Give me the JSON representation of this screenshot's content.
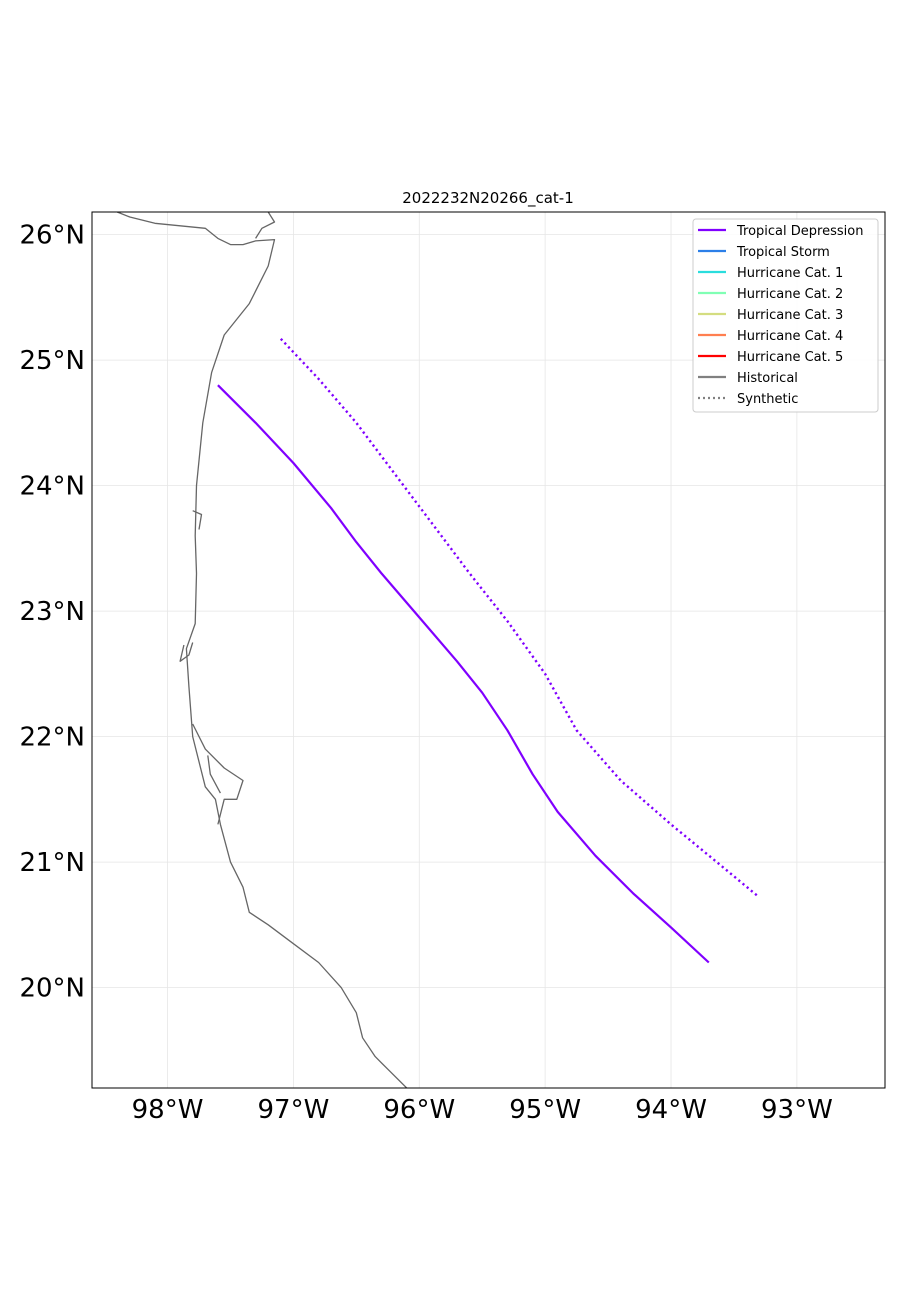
{
  "title": "2022232N20266_cat-1",
  "map": {
    "type": "map",
    "extent": {
      "lon": [
        -98.6,
        -92.3
      ],
      "lat": [
        19.2,
        26.18
      ]
    },
    "grid": true,
    "x_ticks": [
      {
        "value": -98,
        "label": "98°W"
      },
      {
        "value": -97,
        "label": "97°W"
      },
      {
        "value": -96,
        "label": "96°W"
      },
      {
        "value": -95,
        "label": "95°W"
      },
      {
        "value": -94,
        "label": "94°W"
      },
      {
        "value": -93,
        "label": "93°W"
      }
    ],
    "y_ticks": [
      {
        "value": 26,
        "label": "26°N"
      },
      {
        "value": 25,
        "label": "25°N"
      },
      {
        "value": 24,
        "label": "24°N"
      },
      {
        "value": 23,
        "label": "23°N"
      },
      {
        "value": 22,
        "label": "22°N"
      },
      {
        "value": 21,
        "label": "21°N"
      },
      {
        "value": 20,
        "label": "20°N"
      }
    ],
    "coastline_color": "#666666",
    "coastline": [
      [
        [
          -98.4,
          26.18
        ],
        [
          -98.3,
          26.14
        ],
        [
          -98.1,
          26.09
        ],
        [
          -97.9,
          26.07
        ],
        [
          -97.7,
          26.05
        ],
        [
          -97.6,
          25.97
        ],
        [
          -97.5,
          25.92
        ],
        [
          -97.4,
          25.92
        ],
        [
          -97.3,
          25.95
        ],
        [
          -97.15,
          25.96
        ],
        [
          -97.2,
          25.75
        ],
        [
          -97.35,
          25.45
        ],
        [
          -97.55,
          25.2
        ],
        [
          -97.65,
          24.9
        ],
        [
          -97.72,
          24.5
        ],
        [
          -97.77,
          24.0
        ],
        [
          -97.78,
          23.6
        ],
        [
          -97.77,
          23.3
        ],
        [
          -97.78,
          22.9
        ],
        [
          -97.85,
          22.7
        ],
        [
          -97.83,
          22.4
        ],
        [
          -97.8,
          22.0
        ],
        [
          -97.75,
          21.8
        ],
        [
          -97.7,
          21.6
        ],
        [
          -97.62,
          21.5
        ],
        [
          -97.58,
          21.3
        ],
        [
          -97.5,
          21.0
        ],
        [
          -97.4,
          20.8
        ],
        [
          -97.35,
          20.6
        ],
        [
          -97.2,
          20.5
        ],
        [
          -97.0,
          20.35
        ],
        [
          -96.8,
          20.2
        ],
        [
          -96.62,
          20.0
        ],
        [
          -96.5,
          19.8
        ],
        [
          -96.45,
          19.6
        ],
        [
          -96.35,
          19.45
        ],
        [
          -96.25,
          19.35
        ],
        [
          -96.1,
          19.2
        ]
      ],
      [
        [
          -97.2,
          26.18
        ],
        [
          -97.15,
          26.1
        ],
        [
          -97.25,
          26.05
        ],
        [
          -97.3,
          25.97
        ]
      ],
      [
        [
          -97.8,
          23.8
        ],
        [
          -97.73,
          23.77
        ],
        [
          -97.75,
          23.65
        ]
      ],
      [
        [
          -97.87,
          22.73
        ],
        [
          -97.9,
          22.6
        ],
        [
          -97.83,
          22.65
        ],
        [
          -97.8,
          22.75
        ]
      ],
      [
        [
          -97.8,
          22.1
        ],
        [
          -97.7,
          21.9
        ],
        [
          -97.55,
          21.75
        ],
        [
          -97.4,
          21.65
        ],
        [
          -97.45,
          21.5
        ],
        [
          -97.55,
          21.5
        ],
        [
          -97.6,
          21.3
        ]
      ],
      [
        [
          -97.68,
          21.85
        ],
        [
          -97.66,
          21.7
        ],
        [
          -97.58,
          21.55
        ]
      ]
    ]
  },
  "legend": {
    "position": "upper right",
    "items": [
      {
        "label": "Tropical Depression",
        "color": "#8000ff",
        "style": "solid"
      },
      {
        "label": "Tropical Storm",
        "color": "#2c7fe8",
        "style": "solid"
      },
      {
        "label": "Hurricane Cat. 1",
        "color": "#2adddd",
        "style": "solid"
      },
      {
        "label": "Hurricane Cat. 2",
        "color": "#80ffb4",
        "style": "solid"
      },
      {
        "label": "Hurricane Cat. 3",
        "color": "#d4dd80",
        "style": "solid"
      },
      {
        "label": "Hurricane Cat. 4",
        "color": "#ff7f50",
        "style": "solid"
      },
      {
        "label": "Hurricane Cat. 5",
        "color": "#ff0000",
        "style": "solid"
      },
      {
        "label": "Historical",
        "color": "#808080",
        "style": "solid"
      },
      {
        "label": "Synthetic",
        "color": "#808080",
        "style": "dotted"
      }
    ]
  },
  "chart_data": {
    "type": "line",
    "title": "2022232N20266_cat-1",
    "xlabel": "",
    "ylabel": "",
    "xlim": [
      -98.6,
      -92.3
    ],
    "ylim": [
      19.2,
      26.18
    ],
    "grid": true,
    "legend_position": "upper right",
    "series": [
      {
        "name": "Historical",
        "category": "Tropical Depression",
        "color": "#8000ff",
        "style": "solid",
        "points": [
          [
            -97.6,
            24.8
          ],
          [
            -97.3,
            24.5
          ],
          [
            -97.0,
            24.18
          ],
          [
            -96.7,
            23.82
          ],
          [
            -96.5,
            23.55
          ],
          [
            -96.3,
            23.3
          ],
          [
            -96.0,
            22.95
          ],
          [
            -95.7,
            22.6
          ],
          [
            -95.5,
            22.35
          ],
          [
            -95.3,
            22.05
          ],
          [
            -95.1,
            21.7
          ],
          [
            -94.9,
            21.4
          ],
          [
            -94.6,
            21.05
          ],
          [
            -94.3,
            20.75
          ],
          [
            -94.0,
            20.48
          ],
          [
            -93.7,
            20.2
          ]
        ]
      },
      {
        "name": "Synthetic",
        "category": "Tropical Depression",
        "color": "#8000ff",
        "style": "dotted",
        "points": [
          [
            -97.1,
            25.17
          ],
          [
            -96.8,
            24.85
          ],
          [
            -96.5,
            24.5
          ],
          [
            -96.2,
            24.1
          ],
          [
            -95.9,
            23.7
          ],
          [
            -95.6,
            23.3
          ],
          [
            -95.3,
            22.92
          ],
          [
            -95.0,
            22.5
          ],
          [
            -94.75,
            22.05
          ],
          [
            -94.4,
            21.65
          ],
          [
            -94.0,
            21.3
          ],
          [
            -93.6,
            20.97
          ],
          [
            -93.3,
            20.72
          ]
        ]
      }
    ]
  }
}
